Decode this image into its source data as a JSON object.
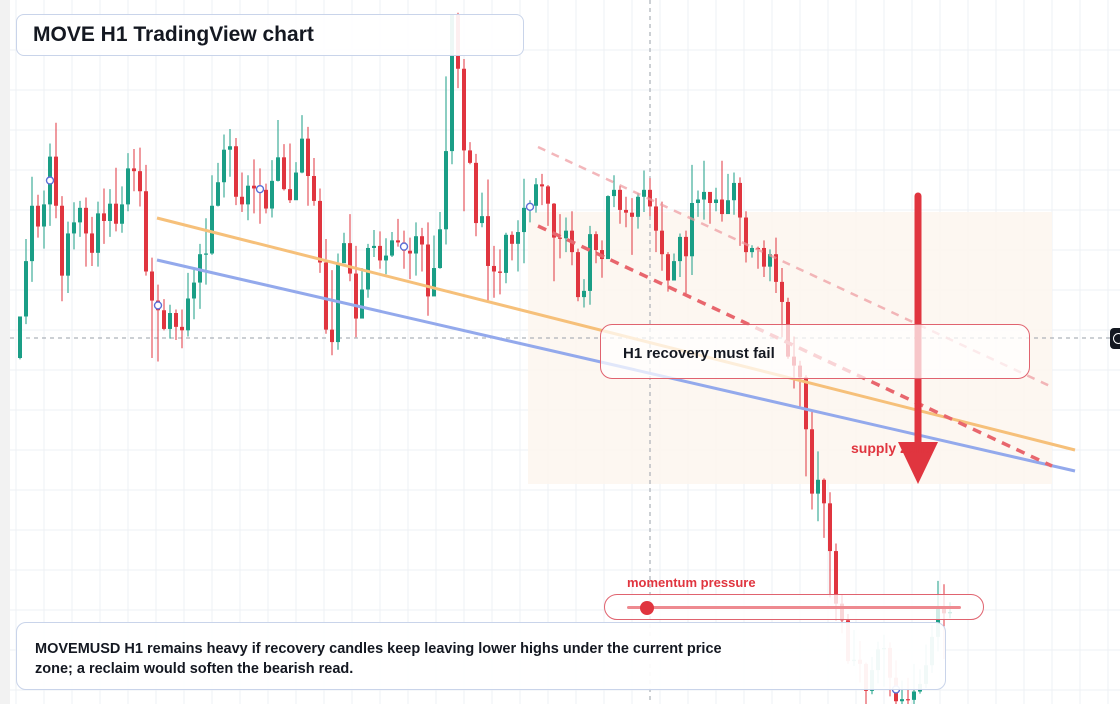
{
  "title": "MOVE H1 TradingView chart",
  "callout": "H1 recovery must fail",
  "supply_label": "supply zone",
  "momentum_label": "momentum pressure",
  "momentum_level": 0.06,
  "note": "MOVEMUSD H1 remains heavy if recovery candles keep leaving lower highs under the current price zone; a reclaim would soften the bearish read.",
  "colors": {
    "bull": "#1a9e86",
    "bear": "#e0353f",
    "resistance_line": "#f6c07a",
    "support_line": "#93a9ec",
    "dashed_trend": "#ea8085",
    "arrow": "#e0353f"
  },
  "icons": [
    "crosshair-icon",
    "down-arrow-icon",
    "slider-knob-icon"
  ],
  "chart_data": {
    "type": "candlestick",
    "symbol": "MOVEMUSD",
    "timeframe": "H1",
    "y_axis": "price (unlabelled)",
    "grid": true,
    "ohlc": [
      [
        0.5,
        0.56,
        0.56,
        0.498
      ],
      [
        0.56,
        0.64,
        0.672,
        0.549
      ],
      [
        0.64,
        0.72,
        0.762,
        0.61
      ],
      [
        0.72,
        0.69,
        0.736,
        0.674
      ],
      [
        0.69,
        0.722,
        0.742,
        0.658
      ],
      [
        0.722,
        0.791,
        0.81,
        0.691
      ],
      [
        0.791,
        0.72,
        0.84,
        0.702
      ],
      [
        0.72,
        0.619,
        0.734,
        0.582
      ],
      [
        0.619,
        0.68,
        0.697,
        0.594
      ],
      [
        0.68,
        0.696,
        0.725,
        0.657
      ],
      [
        0.696,
        0.717,
        0.727,
        0.675
      ],
      [
        0.717,
        0.68,
        0.732,
        0.632
      ],
      [
        0.68,
        0.652,
        0.704,
        0.633
      ],
      [
        0.652,
        0.709,
        0.726,
        0.632
      ],
      [
        0.709,
        0.698,
        0.745,
        0.665
      ],
      [
        0.698,
        0.723,
        0.744,
        0.675
      ],
      [
        0.723,
        0.694,
        0.775,
        0.683
      ],
      [
        0.694,
        0.722,
        0.748,
        0.681
      ],
      [
        0.722,
        0.774,
        0.796,
        0.712
      ],
      [
        0.774,
        0.77,
        0.802,
        0.741
      ],
      [
        0.77,
        0.741,
        0.804,
        0.719
      ],
      [
        0.741,
        0.625,
        0.779,
        0.619
      ],
      [
        0.625,
        0.583,
        0.645,
        0.5
      ],
      [
        0.583,
        0.569,
        0.606,
        0.495
      ],
      [
        0.569,
        0.542,
        0.585,
        0.54
      ],
      [
        0.542,
        0.565,
        0.577,
        0.528
      ],
      [
        0.565,
        0.545,
        0.57,
        0.526
      ],
      [
        0.545,
        0.54,
        0.57,
        0.514
      ],
      [
        0.54,
        0.586,
        0.623,
        0.531
      ],
      [
        0.586,
        0.609,
        0.63,
        0.556
      ],
      [
        0.609,
        0.65,
        0.665,
        0.571
      ],
      [
        0.65,
        0.651,
        0.702,
        0.606
      ],
      [
        0.651,
        0.72,
        0.764,
        0.649
      ],
      [
        0.72,
        0.754,
        0.782,
        0.719
      ],
      [
        0.754,
        0.801,
        0.823,
        0.732
      ],
      [
        0.801,
        0.806,
        0.831,
        0.762
      ],
      [
        0.806,
        0.733,
        0.818,
        0.721
      ],
      [
        0.733,
        0.722,
        0.768,
        0.711
      ],
      [
        0.722,
        0.749,
        0.764,
        0.699
      ],
      [
        0.749,
        0.745,
        0.787,
        0.709
      ],
      [
        0.745,
        0.743,
        0.774,
        0.694
      ],
      [
        0.743,
        0.716,
        0.752,
        0.709
      ],
      [
        0.716,
        0.756,
        0.786,
        0.703
      ],
      [
        0.756,
        0.79,
        0.844,
        0.755
      ],
      [
        0.79,
        0.744,
        0.809,
        0.742
      ],
      [
        0.744,
        0.728,
        0.81,
        0.724
      ],
      [
        0.728,
        0.768,
        0.783,
        0.761
      ],
      [
        0.768,
        0.817,
        0.851,
        0.767
      ],
      [
        0.817,
        0.763,
        0.834,
        0.72
      ],
      [
        0.763,
        0.727,
        0.789,
        0.72
      ],
      [
        0.727,
        0.638,
        0.745,
        0.623
      ],
      [
        0.638,
        0.541,
        0.672,
        0.535
      ],
      [
        0.541,
        0.523,
        0.627,
        0.504
      ],
      [
        0.523,
        0.637,
        0.651,
        0.512
      ],
      [
        0.637,
        0.666,
        0.681,
        0.64
      ],
      [
        0.666,
        0.622,
        0.708,
        0.611
      ],
      [
        0.622,
        0.557,
        0.662,
        0.53
      ],
      [
        0.557,
        0.599,
        0.63,
        0.583
      ],
      [
        0.599,
        0.659,
        0.665,
        0.587
      ],
      [
        0.659,
        0.662,
        0.685,
        0.646
      ],
      [
        0.662,
        0.641,
        0.683,
        0.629
      ],
      [
        0.641,
        0.648,
        0.673,
        0.621
      ],
      [
        0.648,
        0.67,
        0.682,
        0.646
      ],
      [
        0.67,
        0.667,
        0.701,
        0.661
      ],
      [
        0.667,
        0.655,
        0.684,
        0.629
      ],
      [
        0.655,
        0.651,
        0.674,
        0.614
      ],
      [
        0.651,
        0.676,
        0.696,
        0.619
      ],
      [
        0.676,
        0.664,
        0.688,
        0.625
      ],
      [
        0.664,
        0.589,
        0.696,
        0.561
      ],
      [
        0.589,
        0.63,
        0.677,
        0.623
      ],
      [
        0.63,
        0.686,
        0.711,
        0.629
      ],
      [
        0.686,
        0.799,
        0.907,
        0.664
      ],
      [
        0.799,
        0.996,
        0.996,
        0.78
      ],
      [
        0.996,
        0.918,
        0.999,
        0.89
      ],
      [
        0.918,
        0.8,
        0.932,
        0.712
      ],
      [
        0.8,
        0.782,
        0.812,
        0.78
      ],
      [
        0.782,
        0.695,
        0.795,
        0.676
      ],
      [
        0.695,
        0.705,
        0.739,
        0.689
      ],
      [
        0.705,
        0.633,
        0.758,
        0.58
      ],
      [
        0.633,
        0.625,
        0.662,
        0.587
      ],
      [
        0.625,
        0.623,
        0.657,
        0.592
      ],
      [
        0.623,
        0.678,
        0.681,
        0.608
      ],
      [
        0.678,
        0.665,
        0.683,
        0.641
      ],
      [
        0.665,
        0.682,
        0.699,
        0.625
      ],
      [
        0.682,
        0.717,
        0.759,
        0.637
      ],
      [
        0.717,
        0.72,
        0.728,
        0.696
      ],
      [
        0.72,
        0.751,
        0.76,
        0.71
      ],
      [
        0.751,
        0.748,
        0.766,
        0.721
      ],
      [
        0.748,
        0.723,
        0.75,
        0.691
      ],
      [
        0.723,
        0.674,
        0.724,
        0.611
      ],
      [
        0.674,
        0.673,
        0.708,
        0.644
      ],
      [
        0.673,
        0.684,
        0.703,
        0.653
      ],
      [
        0.684,
        0.653,
        0.712,
        0.634
      ],
      [
        0.653,
        0.588,
        0.658,
        0.582
      ],
      [
        0.588,
        0.597,
        0.614,
        0.573
      ],
      [
        0.597,
        0.679,
        0.691,
        0.577
      ],
      [
        0.679,
        0.656,
        0.683,
        0.637
      ],
      [
        0.656,
        0.643,
        0.67,
        0.616
      ],
      [
        0.643,
        0.734,
        0.735,
        0.648
      ],
      [
        0.734,
        0.743,
        0.764,
        0.718
      ],
      [
        0.743,
        0.714,
        0.749,
        0.694
      ],
      [
        0.714,
        0.71,
        0.733,
        0.689
      ],
      [
        0.71,
        0.704,
        0.731,
        0.649
      ],
      [
        0.704,
        0.733,
        0.738,
        0.687
      ],
      [
        0.733,
        0.743,
        0.771,
        0.711
      ],
      [
        0.743,
        0.719,
        0.76,
        0.705
      ],
      [
        0.719,
        0.684,
        0.731,
        0.653
      ],
      [
        0.684,
        0.65,
        0.726,
        0.626
      ],
      [
        0.65,
        0.612,
        0.653,
        0.596
      ],
      [
        0.612,
        0.64,
        0.651,
        0.616
      ],
      [
        0.64,
        0.675,
        0.68,
        0.617
      ],
      [
        0.675,
        0.647,
        0.684,
        0.592
      ],
      [
        0.647,
        0.724,
        0.779,
        0.62
      ],
      [
        0.724,
        0.729,
        0.742,
        0.704
      ],
      [
        0.729,
        0.74,
        0.785,
        0.7
      ],
      [
        0.74,
        0.724,
        0.735,
        0.694
      ],
      [
        0.724,
        0.729,
        0.746,
        0.712
      ],
      [
        0.729,
        0.708,
        0.785,
        0.697
      ],
      [
        0.708,
        0.728,
        0.766,
        0.718
      ],
      [
        0.728,
        0.753,
        0.768,
        0.707
      ],
      [
        0.753,
        0.703,
        0.761,
        0.662
      ],
      [
        0.703,
        0.653,
        0.712,
        0.638
      ],
      [
        0.653,
        0.659,
        0.663,
        0.645
      ],
      [
        0.659,
        0.657,
        0.661,
        0.629
      ],
      [
        0.659,
        0.632,
        0.67,
        0.617
      ],
      [
        0.632,
        0.65,
        0.657,
        0.611
      ],
      [
        0.65,
        0.61,
        0.674,
        0.594
      ],
      [
        0.61,
        0.581,
        0.63,
        0.53
      ],
      [
        0.581,
        0.502,
        0.587,
        0.499
      ],
      [
        0.502,
        0.489,
        0.531,
        0.456
      ],
      [
        0.489,
        0.472,
        0.496,
        0.43
      ],
      [
        0.472,
        0.397,
        0.475,
        0.329
      ],
      [
        0.397,
        0.304,
        0.422,
        0.281
      ],
      [
        0.304,
        0.324,
        0.365,
        0.264
      ],
      [
        0.324,
        0.29,
        0.326,
        0.24
      ],
      [
        0.29,
        0.221,
        0.306,
        0.154
      ],
      [
        0.221,
        0.145,
        0.232,
        0.121
      ],
      [
        0.145,
        0.121,
        0.158,
        0.102
      ],
      [
        0.121,
        0.062,
        0.13,
        0.058
      ],
      [
        0.062,
        0.064,
        0.107,
        0.055
      ],
      [
        0.064,
        0.058,
        0.091,
        0.031
      ],
      [
        0.058,
        0.019,
        0.06,
        0.0
      ],
      [
        0.019,
        0.049,
        0.068,
        0.014
      ],
      [
        0.049,
        0.079,
        0.09,
        0.03
      ],
      [
        0.079,
        0.081,
        0.1,
        0.025
      ],
      [
        0.081,
        0.038,
        0.089,
        0.011
      ],
      [
        0.038,
        0.004,
        0.063,
        0.0
      ],
      [
        0.004,
        0.007,
        0.034,
        0.0
      ],
      [
        0.007,
        0.006,
        0.038,
        0.0
      ],
      [
        0.006,
        0.018,
        0.058,
        0.0
      ],
      [
        0.018,
        0.029,
        0.05,
        0.015
      ],
      [
        0.029,
        0.056,
        0.086,
        0.023
      ],
      [
        0.056,
        0.097,
        0.114,
        0.045
      ],
      [
        0.097,
        0.14,
        0.178,
        0.076
      ],
      [
        0.14,
        0.131,
        0.173,
        0.065
      ],
      [
        0.131,
        0.133,
        0.147,
        0.124
      ]
    ],
    "markers_at_candle": [
      5,
      23,
      40,
      64,
      85,
      146
    ],
    "trendlines": [
      {
        "id": "resistance",
        "style": "solid",
        "color_key": "resistance_line"
      },
      {
        "id": "support",
        "style": "solid",
        "color_key": "support_line"
      },
      {
        "id": "upper-dashed",
        "style": "dashed-faint",
        "color_key": "dashed_trend"
      },
      {
        "id": "lower-dashed",
        "style": "dashed",
        "color_key": "dashed_trend"
      }
    ]
  }
}
